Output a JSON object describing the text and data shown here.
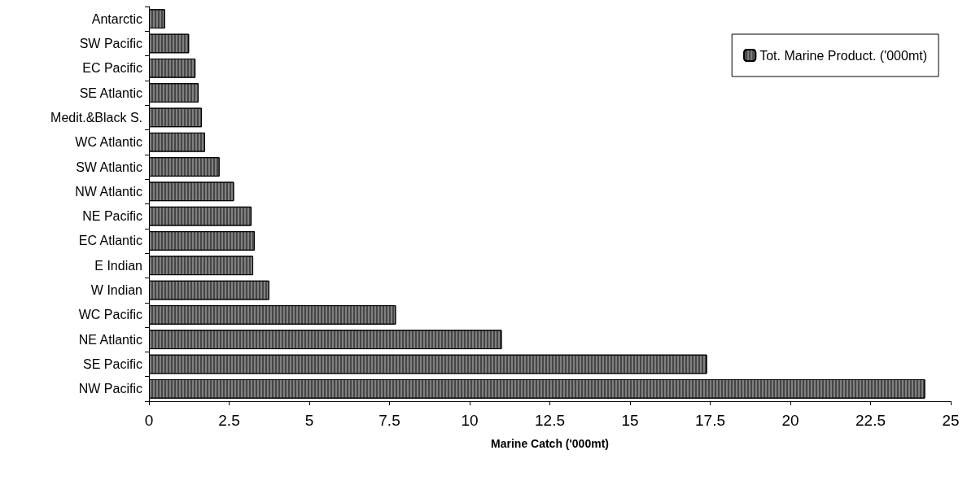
{
  "chart_data": {
    "type": "bar",
    "orientation": "horizontal",
    "xlabel": "Marine Catch ('000mt)",
    "categories": [
      "Antarctic",
      "SW Pacific",
      "EC Pacific",
      "SE Atlantic",
      "Medit.&Black S.",
      "WC Atlantic",
      "SW Atlantic",
      "NW Atlantic",
      "NE Pacific",
      "EC Atlantic",
      "E Indian",
      "W Indian",
      "WC Pacific",
      "NE Atlantic",
      "SE Pacific",
      "NW Pacific"
    ],
    "series": [
      {
        "name": "Tot. Marine Product. ('000mt)",
        "color": "#808080",
        "values": [
          0.5,
          1.25,
          1.45,
          1.55,
          1.65,
          1.75,
          2.2,
          2.65,
          3.2,
          3.3,
          3.25,
          3.75,
          7.7,
          11.0,
          17.4,
          24.2
        ]
      }
    ],
    "xlim": [
      0,
      25
    ],
    "xticks": [
      0,
      2.5,
      5,
      7.5,
      10,
      12.5,
      15,
      17.5,
      20,
      22.5,
      25
    ],
    "grid": false,
    "legend": "top right"
  }
}
